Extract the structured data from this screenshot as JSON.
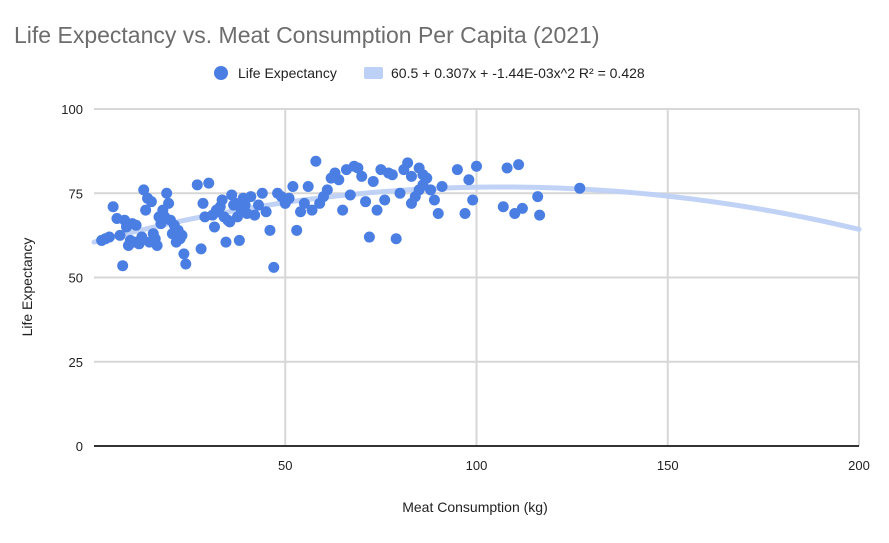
{
  "chart_data": {
    "type": "scatter",
    "title": "Life Expectancy vs. Meat Consumption Per Capita (2021)",
    "xlabel": "Meat Consumption (kg)",
    "ylabel": "Life Expectancy",
    "xlim": [
      0,
      200
    ],
    "ylim": [
      0,
      100
    ],
    "x_ticks": [
      50,
      100,
      150,
      200
    ],
    "y_ticks": [
      0,
      25,
      50,
      75,
      100
    ],
    "grid": true,
    "legend_position": "top",
    "colors": {
      "points": "#4a7ee3",
      "trend": "#bdd0f5",
      "grid": "#d7d7d7",
      "axis": "#333333"
    },
    "series": [
      {
        "name": "Life Expectancy",
        "type": "scatter",
        "points": [
          [
            2.0,
            61.0
          ],
          [
            3.0,
            61.5
          ],
          [
            4.0,
            62.0
          ],
          [
            5.0,
            71.0
          ],
          [
            6.0,
            67.5
          ],
          [
            6.8,
            62.5
          ],
          [
            7.5,
            53.5
          ],
          [
            8.0,
            67.0
          ],
          [
            8.5,
            65.0
          ],
          [
            9.0,
            59.5
          ],
          [
            9.5,
            61.0
          ],
          [
            10.0,
            66.0
          ],
          [
            10.5,
            60.5
          ],
          [
            11.0,
            65.5
          ],
          [
            11.8,
            60.0
          ],
          [
            12.5,
            62.0
          ],
          [
            13.0,
            76.0
          ],
          [
            13.5,
            70.0
          ],
          [
            14.0,
            73.5
          ],
          [
            14.5,
            60.5
          ],
          [
            15.0,
            72.5
          ],
          [
            15.5,
            63.0
          ],
          [
            16.0,
            61.5
          ],
          [
            16.5,
            59.5
          ],
          [
            17.0,
            68.0
          ],
          [
            17.5,
            66.0
          ],
          [
            18.0,
            70.0
          ],
          [
            18.5,
            68.0
          ],
          [
            19.0,
            75.0
          ],
          [
            19.5,
            72.0
          ],
          [
            20.0,
            67.0
          ],
          [
            20.5,
            63.0
          ],
          [
            21.0,
            65.5
          ],
          [
            21.5,
            60.5
          ],
          [
            22.0,
            64.0
          ],
          [
            22.5,
            61.5
          ],
          [
            23.0,
            62.5
          ],
          [
            23.5,
            57.0
          ],
          [
            24.0,
            54.0
          ],
          [
            27.0,
            77.5
          ],
          [
            28.0,
            58.5
          ],
          [
            28.5,
            72.0
          ],
          [
            29.0,
            68.0
          ],
          [
            30.0,
            78.0
          ],
          [
            31.0,
            68.5
          ],
          [
            31.5,
            65.0
          ],
          [
            32.0,
            70.0
          ],
          [
            32.5,
            69.5
          ],
          [
            33.0,
            71.0
          ],
          [
            33.5,
            73.0
          ],
          [
            34.0,
            68.0
          ],
          [
            34.5,
            60.5
          ],
          [
            35.0,
            67.0
          ],
          [
            35.5,
            66.5
          ],
          [
            36.0,
            74.5
          ],
          [
            36.5,
            71.5
          ],
          [
            37.0,
            72.0
          ],
          [
            37.5,
            68.0
          ],
          [
            38.0,
            61.0
          ],
          [
            38.5,
            70.0
          ],
          [
            39.0,
            73.5
          ],
          [
            39.5,
            71.5
          ],
          [
            40.0,
            69.0
          ],
          [
            41.0,
            74.0
          ],
          [
            42.0,
            68.5
          ],
          [
            43.0,
            71.5
          ],
          [
            44.0,
            75.0
          ],
          [
            45.0,
            69.5
          ],
          [
            46.0,
            64.0
          ],
          [
            47.0,
            53.0
          ],
          [
            48.0,
            75.0
          ],
          [
            49.0,
            74.0
          ],
          [
            50.0,
            72.0
          ],
          [
            51.0,
            73.5
          ],
          [
            52.0,
            77.0
          ],
          [
            53.0,
            64.0
          ],
          [
            54.0,
            69.5
          ],
          [
            55.0,
            72.0
          ],
          [
            56.0,
            77.0
          ],
          [
            57.0,
            70.0
          ],
          [
            58.0,
            84.5
          ],
          [
            59.0,
            72.0
          ],
          [
            60.0,
            74.0
          ],
          [
            61.0,
            76.0
          ],
          [
            62.0,
            79.5
          ],
          [
            63.0,
            81.0
          ],
          [
            64.0,
            79.0
          ],
          [
            65.0,
            70.0
          ],
          [
            66.0,
            82.0
          ],
          [
            67.0,
            74.5
          ],
          [
            68.0,
            83.0
          ],
          [
            69.0,
            82.5
          ],
          [
            70.0,
            80.0
          ],
          [
            71.0,
            72.5
          ],
          [
            72.0,
            62.0
          ],
          [
            73.0,
            78.5
          ],
          [
            74.0,
            70.0
          ],
          [
            75.0,
            82.0
          ],
          [
            76.0,
            73.0
          ],
          [
            77.0,
            81.0
          ],
          [
            78.0,
            80.5
          ],
          [
            79.0,
            61.5
          ],
          [
            80.0,
            75.0
          ],
          [
            81.0,
            82.0
          ],
          [
            82.0,
            84.0
          ],
          [
            83.0,
            80.0
          ],
          [
            84.0,
            74.0
          ],
          [
            85.0,
            82.5
          ],
          [
            86.0,
            77.5
          ],
          [
            87.0,
            79.5
          ],
          [
            88.0,
            76.0
          ],
          [
            89.0,
            73.0
          ],
          [
            90.0,
            69.0
          ],
          [
            91.0,
            77.0
          ],
          [
            95.0,
            82.0
          ],
          [
            97.0,
            69.0
          ],
          [
            98.0,
            79.0
          ],
          [
            99.0,
            73.0
          ],
          [
            100.0,
            83.0
          ],
          [
            107.0,
            71.0
          ],
          [
            108.0,
            82.5
          ],
          [
            110.0,
            69.0
          ],
          [
            111.0,
            83.5
          ],
          [
            112.0,
            70.5
          ],
          [
            116.0,
            74.0
          ],
          [
            116.5,
            68.5
          ],
          [
            127.0,
            76.5
          ],
          [
            83.0,
            72.0
          ],
          [
            85.0,
            76.0
          ],
          [
            86.0,
            80.5
          ]
        ]
      },
      {
        "name": "60.5 + 0.307x + -1.44E-03x^2 R² = 0.428",
        "type": "trendline",
        "equation": {
          "a": 60.5,
          "b": 0.307,
          "c": -0.00144
        },
        "x_range": [
          0,
          200
        ]
      }
    ]
  },
  "legend": {
    "points_label": "Life Expectancy",
    "trend_label": "60.5 + 0.307x + -1.44E-03x^2 R² = 0.428"
  },
  "axes": {
    "x_title": "Meat Consumption (kg)",
    "y_title": "Life Expectancy",
    "x_tick_labels": [
      "50",
      "100",
      "150",
      "200"
    ],
    "y_tick_labels": [
      "0",
      "25",
      "50",
      "75",
      "100"
    ]
  }
}
